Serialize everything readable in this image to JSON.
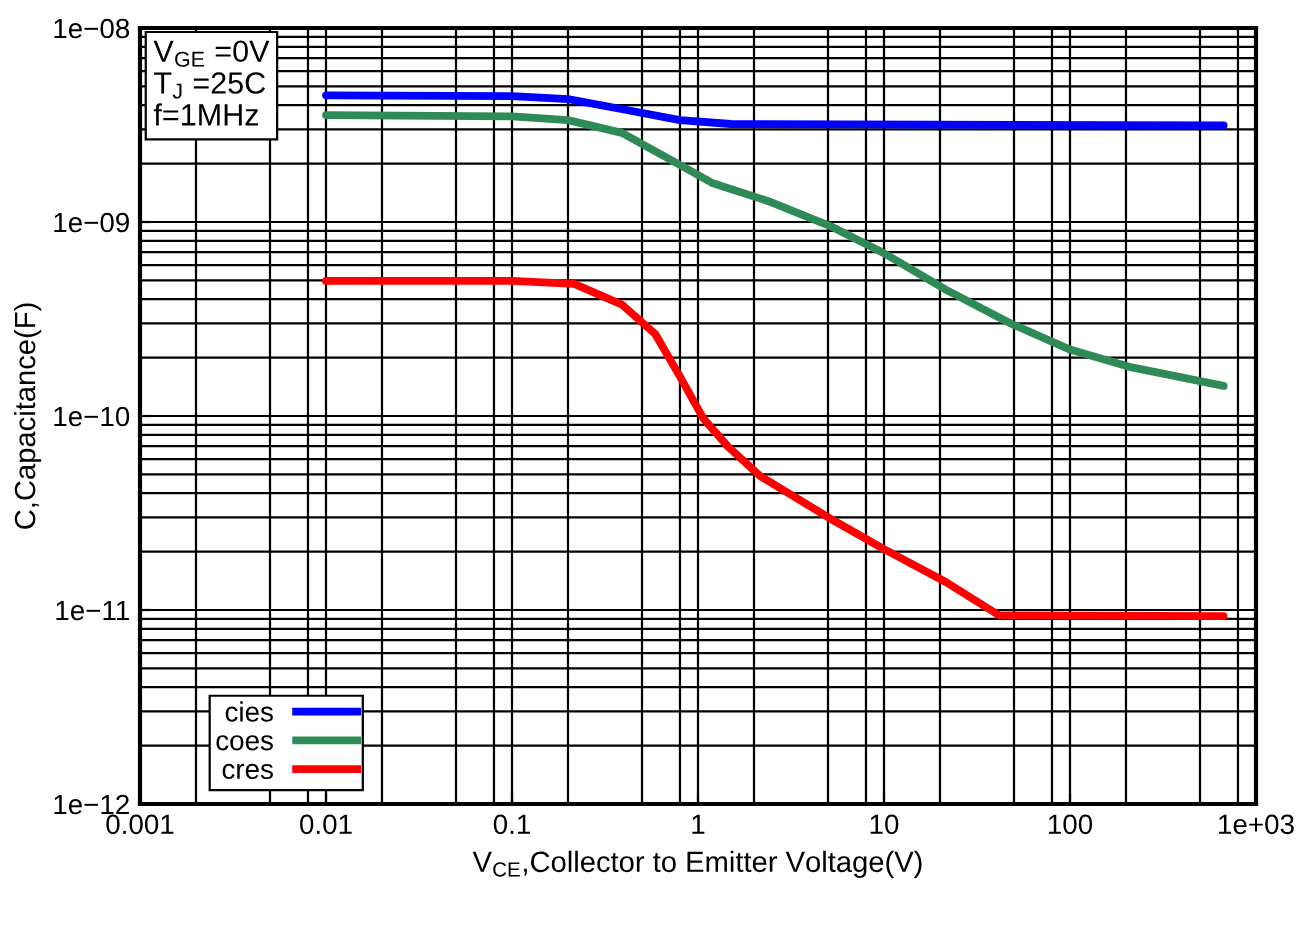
{
  "chart_data": {
    "type": "line",
    "xlabel": "V$_{CE}$,Collector to Emitter Voltage(V)",
    "ylabel": "C,Capacitance(F)",
    "log": "xy",
    "grid": true,
    "legend": "bottom left",
    "line_style": "solid",
    "marker": "none",
    "xlim": [
      0.001,
      1000
    ],
    "ylim": [
      1e-12,
      1e-08
    ],
    "xticks": [
      {
        "value": 0.001,
        "label": "0.001"
      },
      {
        "value": 0.01,
        "label": "0.01"
      },
      {
        "value": 0.1,
        "label": "0.1"
      },
      {
        "value": 1,
        "label": "1"
      },
      {
        "value": 10,
        "label": "10"
      },
      {
        "value": 100,
        "label": "100"
      },
      {
        "value": 1000,
        "label": "1e+03"
      }
    ],
    "yticks": [
      {
        "value": 1e-12,
        "label": "1e−12"
      },
      {
        "value": 1e-11,
        "label": "1e−11"
      },
      {
        "value": 1e-10,
        "label": "1e−10"
      },
      {
        "value": 1e-09,
        "label": "1e−09"
      },
      {
        "value": 1e-08,
        "label": "1e−08"
      }
    ],
    "annotations": [
      "V$_{GE}$ =0V",
      "T$_{J}$ =25C",
      "f=1MHz"
    ],
    "series": [
      {
        "name": "cies",
        "color": "#0000ff",
        "x": [
          0.01,
          0.1,
          0.2,
          0.4,
          0.8,
          1.5,
          670
        ],
        "values": [
          4.5e-09,
          4.45e-09,
          4.3e-09,
          3.8e-09,
          3.35e-09,
          3.2e-09,
          3.15e-09
        ]
      },
      {
        "name": "coes",
        "color": "#2e8b57",
        "x": [
          0.01,
          0.1,
          0.2,
          0.39,
          0.79,
          1.19,
          2.39,
          5.3,
          10,
          21.6,
          48,
          100,
          215,
          670
        ],
        "values": [
          3.56e-09,
          3.5e-09,
          3.35e-09,
          2.88e-09,
          1.98e-09,
          1.59e-09,
          1.28e-09,
          9.4e-10,
          6.9e-10,
          4.47e-10,
          3e-10,
          2.2e-10,
          1.78e-10,
          1.43e-10
        ]
      },
      {
        "name": "cres",
        "color": "#ff0000",
        "x": [
          0.01,
          0.1,
          0.216,
          0.39,
          0.59,
          0.79,
          1.07,
          1.45,
          2.16,
          5.3,
          10,
          21.6,
          41.5,
          670
        ],
        "values": [
          4.97e-10,
          4.97e-10,
          4.8e-10,
          3.75e-10,
          2.64e-10,
          1.63e-10,
          9.7e-11,
          6.95e-11,
          4.9e-11,
          2.91e-11,
          2.06e-11,
          1.39e-11,
          9.4e-12,
          9.3e-12
        ]
      }
    ]
  }
}
